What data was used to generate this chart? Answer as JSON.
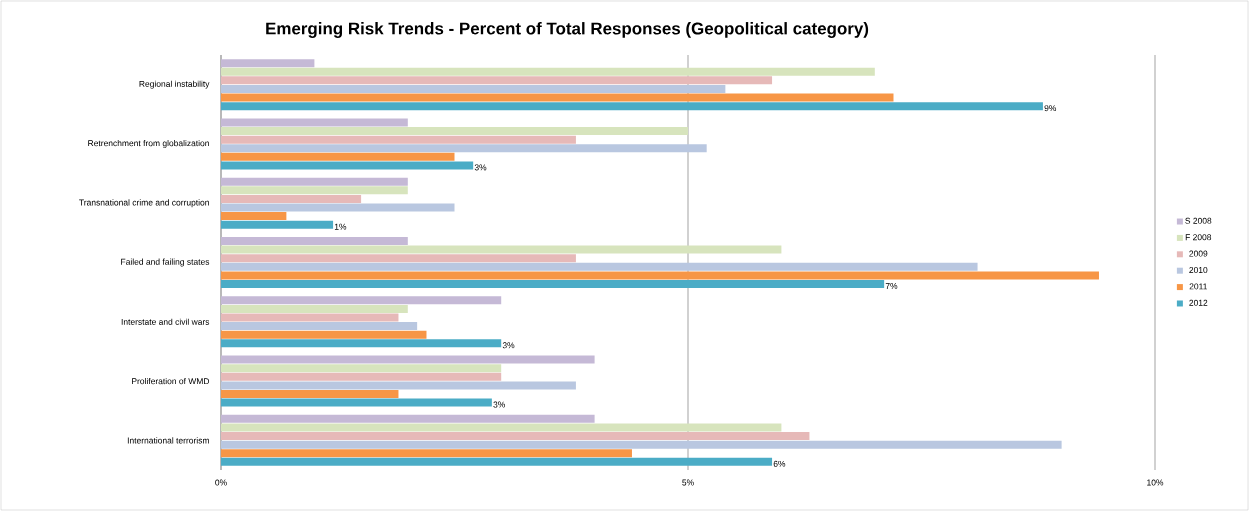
{
  "chart_data": {
    "type": "bar",
    "orientation": "horizontal",
    "title": "Emerging Risk Trends - Percent of Total Responses (Geopolitical category)",
    "categories": [
      "Regional instability",
      "Retrenchment from globalization",
      "Transnational crime and corruption",
      "Failed and failing states",
      "Interstate and civil wars",
      "Proliferation of WMD",
      "International terrorism"
    ],
    "series": [
      {
        "name": "S 2008",
        "color": "#c5b9d6",
        "values": [
          1.0,
          2.0,
          2.0,
          2.0,
          3.0,
          4.0,
          4.0
        ]
      },
      {
        "name": "F 2008",
        "color": "#d7e4bd",
        "values": [
          7.0,
          5.0,
          2.0,
          6.0,
          2.0,
          3.0,
          6.0
        ]
      },
      {
        "name": "2009",
        "color": "#e6b9b8",
        "values": [
          5.9,
          3.8,
          1.5,
          3.8,
          1.9,
          3.0,
          6.3
        ]
      },
      {
        "name": "2010",
        "color": "#b9c7e0",
        "values": [
          5.4,
          5.2,
          2.5,
          8.1,
          2.1,
          3.8,
          9.0
        ]
      },
      {
        "name": "2011",
        "color": "#f79646",
        "values": [
          7.2,
          2.5,
          0.7,
          9.4,
          2.2,
          1.9,
          4.4
        ]
      },
      {
        "name": "2012",
        "color": "#4bacc6",
        "values": [
          8.8,
          2.7,
          1.2,
          7.1,
          3.0,
          2.9,
          5.9
        ],
        "value_labels": [
          "9%",
          "3%",
          "1%",
          "7%",
          "3%",
          "3%",
          "6%"
        ]
      }
    ],
    "xlim": [
      0,
      10
    ],
    "xticks": [
      {
        "value": 0,
        "label": "0%"
      },
      {
        "value": 5,
        "label": "5%"
      },
      {
        "value": 10,
        "label": "10%"
      }
    ],
    "grid": "x",
    "legend": "right"
  }
}
